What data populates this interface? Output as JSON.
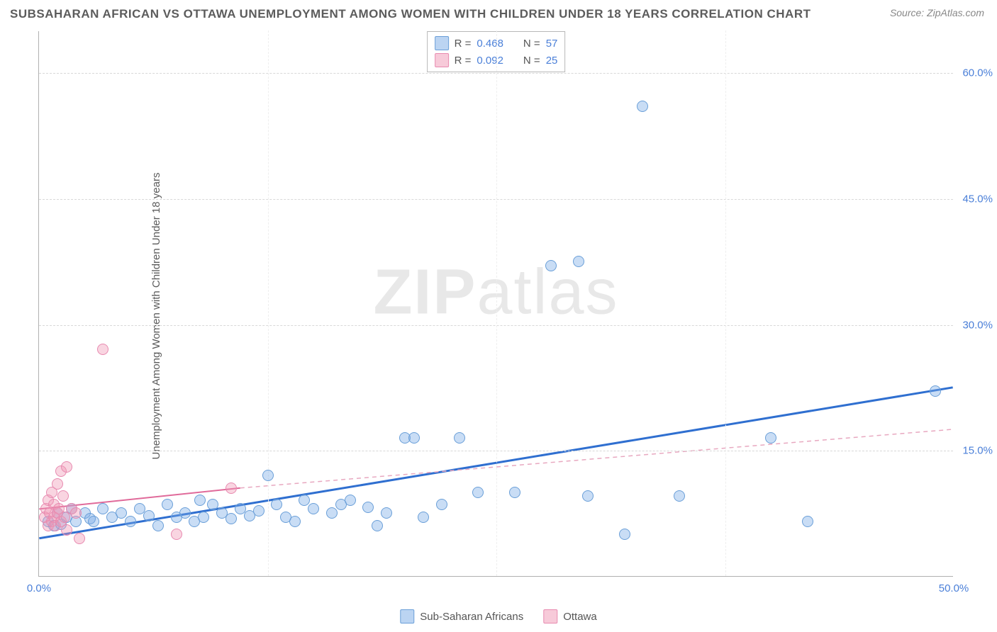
{
  "title": "SUBSAHARAN AFRICAN VS OTTAWA UNEMPLOYMENT AMONG WOMEN WITH CHILDREN UNDER 18 YEARS CORRELATION CHART",
  "source": "Source: ZipAtlas.com",
  "ylabel": "Unemployment Among Women with Children Under 18 years",
  "watermark_a": "ZIP",
  "watermark_b": "atlas",
  "chart": {
    "type": "scatter",
    "xlim": [
      0,
      50
    ],
    "ylim": [
      0,
      65
    ],
    "xticks": [
      {
        "v": 0,
        "label": "0.0%"
      },
      {
        "v": 50,
        "label": "50.0%"
      }
    ],
    "yticks": [
      {
        "v": 15,
        "label": "15.0%"
      },
      {
        "v": 30,
        "label": "30.0%"
      },
      {
        "v": 45,
        "label": "45.0%"
      },
      {
        "v": 60,
        "label": "60.0%"
      }
    ],
    "xtick_marks": [
      0,
      12.5,
      25,
      37.5,
      50
    ],
    "background_color": "#ffffff",
    "grid_color": "#d8d8d8",
    "series": [
      {
        "name": "Sub-Saharan Africans",
        "color_fill": "rgba(120,170,230,0.4)",
        "color_stroke": "#6a9fd8",
        "marker_size": 16,
        "R": "0.468",
        "N": "57",
        "trend_solid": {
          "x1": 0,
          "y1": 4.5,
          "x2": 50,
          "y2": 22.5,
          "color": "#2f6fd0",
          "width": 3
        },
        "points": [
          [
            0.5,
            6.5
          ],
          [
            0.8,
            6.0
          ],
          [
            1.0,
            7.5
          ],
          [
            1.2,
            6.2
          ],
          [
            1.5,
            7.0
          ],
          [
            1.8,
            8.0
          ],
          [
            2.0,
            6.5
          ],
          [
            2.5,
            7.5
          ],
          [
            2.8,
            6.8
          ],
          [
            3.0,
            6.5
          ],
          [
            3.5,
            8.0
          ],
          [
            4.0,
            7.0
          ],
          [
            4.5,
            7.5
          ],
          [
            5.0,
            6.5
          ],
          [
            5.5,
            8.0
          ],
          [
            6.0,
            7.2
          ],
          [
            6.5,
            6.0
          ],
          [
            7.0,
            8.5
          ],
          [
            7.5,
            7.0
          ],
          [
            8.0,
            7.5
          ],
          [
            8.5,
            6.5
          ],
          [
            8.8,
            9.0
          ],
          [
            9.0,
            7.0
          ],
          [
            9.5,
            8.5
          ],
          [
            10.0,
            7.5
          ],
          [
            10.5,
            6.8
          ],
          [
            11.0,
            8.0
          ],
          [
            11.5,
            7.2
          ],
          [
            12.0,
            7.8
          ],
          [
            12.5,
            12.0
          ],
          [
            13.0,
            8.5
          ],
          [
            13.5,
            7.0
          ],
          [
            14.0,
            6.5
          ],
          [
            14.5,
            9.0
          ],
          [
            15.0,
            8.0
          ],
          [
            16.0,
            7.5
          ],
          [
            16.5,
            8.5
          ],
          [
            17.0,
            9.0
          ],
          [
            18.0,
            8.2
          ],
          [
            18.5,
            6.0
          ],
          [
            19.0,
            7.5
          ],
          [
            20.0,
            16.5
          ],
          [
            20.5,
            16.5
          ],
          [
            21.0,
            7.0
          ],
          [
            22.0,
            8.5
          ],
          [
            23.0,
            16.5
          ],
          [
            24.0,
            10.0
          ],
          [
            26.0,
            10.0
          ],
          [
            28.0,
            37.0
          ],
          [
            29.5,
            37.5
          ],
          [
            30.0,
            9.5
          ],
          [
            32.0,
            5.0
          ],
          [
            33.0,
            56.0
          ],
          [
            35.0,
            9.5
          ],
          [
            40.0,
            16.5
          ],
          [
            42.0,
            6.5
          ],
          [
            49.0,
            22.0
          ]
        ]
      },
      {
        "name": "Ottawa",
        "color_fill": "rgba(240,150,180,0.4)",
        "color_stroke": "#e88ab0",
        "marker_size": 16,
        "R": "0.092",
        "N": "25",
        "trend_solid": {
          "x1": 0,
          "y1": 8.0,
          "x2": 11,
          "y2": 10.5,
          "color": "#e06a9a",
          "width": 2
        },
        "trend_dashed": {
          "x1": 11,
          "y1": 10.5,
          "x2": 50,
          "y2": 17.5,
          "color": "#e8a8c0",
          "width": 1.5
        },
        "points": [
          [
            0.3,
            7.0
          ],
          [
            0.4,
            8.0
          ],
          [
            0.5,
            6.0
          ],
          [
            0.5,
            9.0
          ],
          [
            0.6,
            7.5
          ],
          [
            0.7,
            6.5
          ],
          [
            0.7,
            10.0
          ],
          [
            0.8,
            7.0
          ],
          [
            0.8,
            8.5
          ],
          [
            0.9,
            6.0
          ],
          [
            1.0,
            7.5
          ],
          [
            1.0,
            11.0
          ],
          [
            1.1,
            8.0
          ],
          [
            1.2,
            12.5
          ],
          [
            1.2,
            6.5
          ],
          [
            1.3,
            9.5
          ],
          [
            1.4,
            7.0
          ],
          [
            1.5,
            13.0
          ],
          [
            1.5,
            5.5
          ],
          [
            1.8,
            8.0
          ],
          [
            2.0,
            7.5
          ],
          [
            2.2,
            4.5
          ],
          [
            3.5,
            27.0
          ],
          [
            7.5,
            5.0
          ],
          [
            10.5,
            10.5
          ]
        ]
      }
    ]
  },
  "legend_bottom": [
    {
      "swatch": "blue",
      "label": "Sub-Saharan Africans"
    },
    {
      "swatch": "pink",
      "label": "Ottawa"
    }
  ]
}
